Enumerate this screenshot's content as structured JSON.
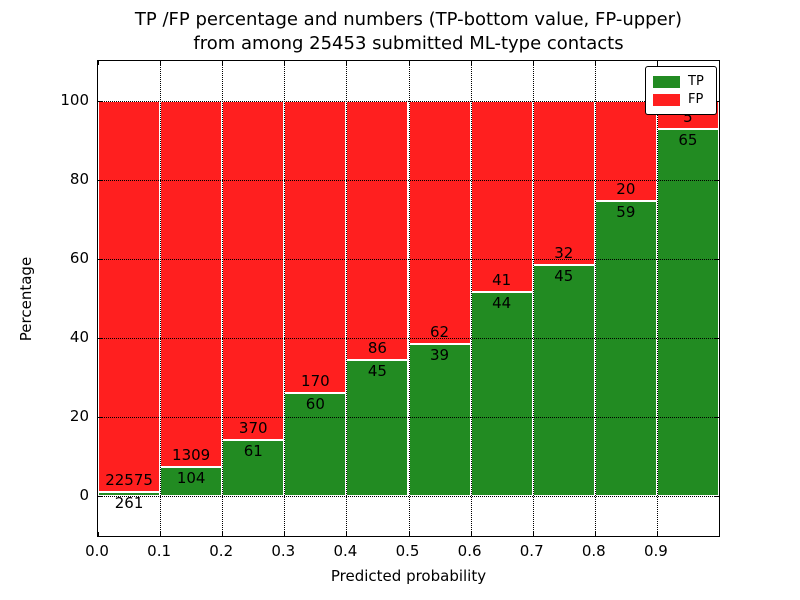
{
  "chart_data": {
    "type": "bar",
    "stacked": true,
    "percent_normalized": true,
    "title_lines": [
      "TP /FP percentage and numbers (TP-bottom value, FP-upper)",
      "from among 25453 submitted ML-type contacts"
    ],
    "xlabel": "Predicted probability",
    "ylabel": "Percentage",
    "xlim": [
      0.0,
      1.0
    ],
    "ylim": [
      -10,
      110
    ],
    "xtick_labels": [
      "0.0",
      "0.1",
      "0.2",
      "0.3",
      "0.4",
      "0.5",
      "0.6",
      "0.7",
      "0.8",
      "0.9"
    ],
    "ytick_labels": [
      "0",
      "20",
      "40",
      "60",
      "80",
      "100"
    ],
    "yticks": [
      0,
      20,
      40,
      60,
      80,
      100
    ],
    "bar_width": 0.1,
    "grid": true,
    "bins": [
      {
        "range": [
          0.0,
          0.1
        ],
        "tp": 261,
        "fp": 22575
      },
      {
        "range": [
          0.1,
          0.2
        ],
        "tp": 104,
        "fp": 1309
      },
      {
        "range": [
          0.2,
          0.3
        ],
        "tp": 61,
        "fp": 370
      },
      {
        "range": [
          0.3,
          0.4
        ],
        "tp": 60,
        "fp": 170
      },
      {
        "range": [
          0.4,
          0.5
        ],
        "tp": 45,
        "fp": 86
      },
      {
        "range": [
          0.5,
          0.6
        ],
        "tp": 39,
        "fp": 62
      },
      {
        "range": [
          0.6,
          0.7
        ],
        "tp": 44,
        "fp": 41
      },
      {
        "range": [
          0.7,
          0.8
        ],
        "tp": 45,
        "fp": 32
      },
      {
        "range": [
          0.8,
          0.9
        ],
        "tp": 59,
        "fp": 20
      },
      {
        "range": [
          0.9,
          1.0
        ],
        "tp": 65,
        "fp": 5
      }
    ],
    "colors": {
      "tp": "#228b22",
      "fp": "#ff1f1f"
    },
    "legend": {
      "position": "upper right",
      "entries": [
        {
          "label": "TP",
          "color": "#228b22"
        },
        {
          "label": "FP",
          "color": "#ff1f1f"
        }
      ]
    }
  }
}
